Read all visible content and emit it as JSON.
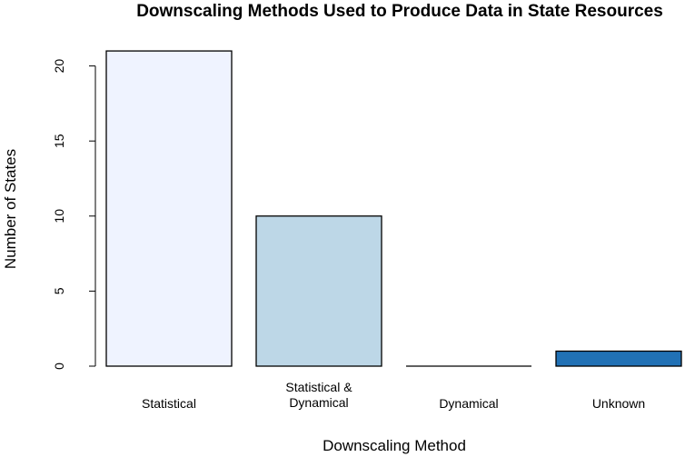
{
  "chart_data": {
    "type": "bar",
    "title": "Downscaling Methods Used to Produce Data in State Resources",
    "xlabel": "Downscaling Method",
    "ylabel": "Number of States",
    "categories": [
      "Statistical",
      "Statistical &\nDynamical",
      "Dynamical",
      "Unknown"
    ],
    "values": [
      21,
      10,
      0,
      1
    ],
    "colors": [
      "#eff3ff",
      "#bdd7e7",
      "#6baed6",
      "#2171b5"
    ],
    "yticks": [
      0,
      5,
      10,
      15,
      20
    ],
    "ylim": [
      0,
      21
    ],
    "grid": false,
    "legend": "none"
  }
}
